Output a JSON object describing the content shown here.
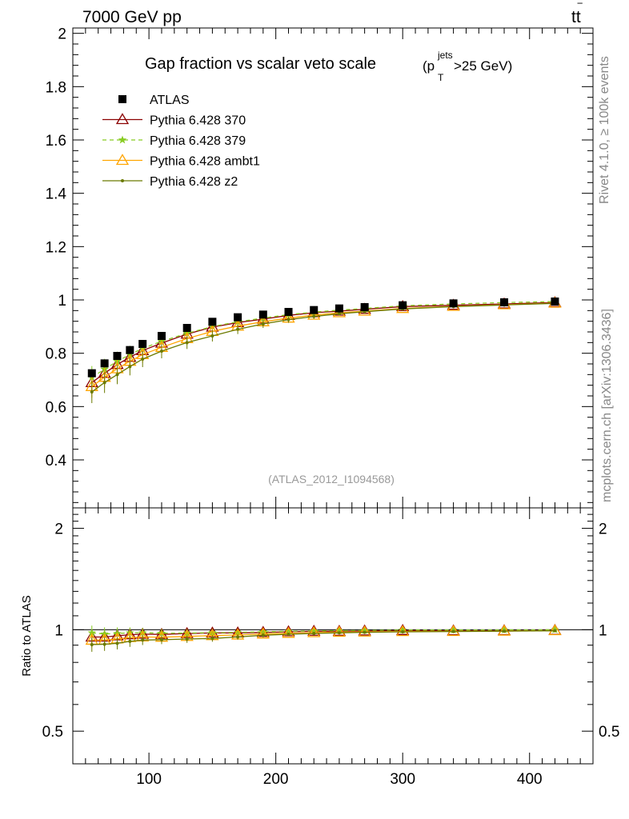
{
  "header": {
    "left": "7000 GeV pp",
    "right_base": "tt",
    "right_bar": "‾"
  },
  "side_labels": {
    "rivet": "Rivet 4.1.0, ≥ 100k events",
    "mcplots": "mcplots.cern.ch [arXiv:1306.3436]"
  },
  "chart_data": {
    "type": "line",
    "title": "Gap fraction vs scalar veto scale",
    "title_suffix": {
      "open": "(p",
      "sub": "T",
      "sup": "jets",
      "close": ">25 GeV)"
    },
    "watermark": "(ATLAS_2012_I1094568)",
    "x": [
      55,
      65,
      75,
      85,
      95,
      110,
      130,
      150,
      170,
      190,
      210,
      230,
      250,
      270,
      300,
      340,
      380,
      420
    ],
    "xlim": [
      40,
      450
    ],
    "xticks": [
      100,
      200,
      300,
      400
    ],
    "main": {
      "ylim": [
        0.22,
        2.02
      ],
      "yticks": [
        0.4,
        0.6,
        0.8,
        1,
        1.2,
        1.4,
        1.6,
        1.8,
        2
      ],
      "ytick_labels": [
        "0.4",
        "0.6",
        "0.8",
        "1",
        "1.2",
        "1.4",
        "1.6",
        "1.8",
        "2"
      ]
    },
    "ratio": {
      "ylabel": "Ratio to ATLAS",
      "ylim": [
        0.4,
        2.3
      ],
      "yticks": [
        0.5,
        1,
        2
      ],
      "ytick_labels": [
        "0.5",
        "1",
        "2"
      ]
    },
    "series": [
      {
        "name": "ATLAS",
        "color": "#000000",
        "marker": "square",
        "values": [
          0.725,
          0.762,
          0.79,
          0.812,
          0.835,
          0.865,
          0.895,
          0.918,
          0.935,
          0.945,
          0.955,
          0.962,
          0.968,
          0.973,
          0.98,
          0.987,
          0.991,
          0.994
        ]
      },
      {
        "name": "Pythia 6.428 370",
        "color": "#8b0000",
        "marker": "triangle-open",
        "dash": "",
        "values": [
          0.69,
          0.725,
          0.758,
          0.785,
          0.81,
          0.838,
          0.872,
          0.898,
          0.915,
          0.928,
          0.942,
          0.952,
          0.958,
          0.965,
          0.975,
          0.98,
          0.985,
          0.99
        ]
      },
      {
        "name": "Pythia 6.428 379",
        "color": "#88cc22",
        "marker": "star",
        "dash": "5,4",
        "values": [
          0.71,
          0.74,
          0.77,
          0.795,
          0.818,
          0.845,
          0.875,
          0.9,
          0.918,
          0.932,
          0.945,
          0.954,
          0.962,
          0.968,
          0.978,
          0.985,
          0.99,
          0.994
        ]
      },
      {
        "name": "Pythia 6.428 ambt1",
        "color": "#ffa500",
        "marker": "triangle-open",
        "dash": "",
        "values": [
          0.675,
          0.71,
          0.742,
          0.77,
          0.795,
          0.822,
          0.855,
          0.882,
          0.902,
          0.918,
          0.932,
          0.943,
          0.952,
          0.958,
          0.968,
          0.976,
          0.982,
          0.988
        ]
      },
      {
        "name": "Pythia 6.428 z2",
        "color": "#6b7a00",
        "marker": "dot",
        "dash": "",
        "values": [
          0.655,
          0.69,
          0.72,
          0.75,
          0.778,
          0.808,
          0.84,
          0.865,
          0.89,
          0.91,
          0.926,
          0.938,
          0.948,
          0.956,
          0.966,
          0.975,
          0.981,
          0.987
        ]
      }
    ]
  }
}
